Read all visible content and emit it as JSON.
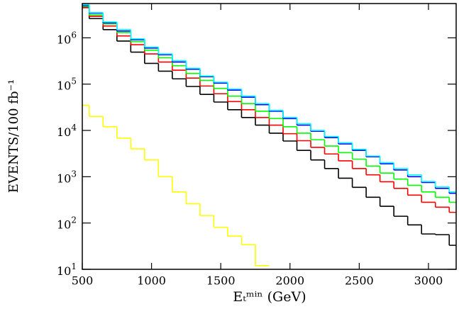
{
  "chart_data": {
    "type": "line",
    "step": true,
    "xlabel": "Eₜᵐⁱⁿ (GeV)",
    "ylabel": "EVENTS/100 fb⁻¹",
    "log_y": true,
    "grid": false,
    "xlim": [
      500,
      3200
    ],
    "xticks": [
      500,
      1000,
      1500,
      2000,
      2500,
      3000
    ],
    "ylim": [
      10,
      5500000
    ],
    "yticks": [
      {
        "value": 10,
        "label": "10^1"
      },
      {
        "value": 100,
        "label": "10^2"
      },
      {
        "value": 1000,
        "label": "10^3"
      },
      {
        "value": 10000,
        "label": "10^4"
      },
      {
        "value": 100000,
        "label": "10^5"
      },
      {
        "value": 1000000,
        "label": "10^6"
      }
    ],
    "x": [
      500,
      600,
      700,
      800,
      900,
      1000,
      1100,
      1200,
      1300,
      1400,
      1500,
      1600,
      1700,
      1800,
      1900,
      2000,
      2100,
      2200,
      2300,
      2400,
      2500,
      2600,
      2700,
      2800,
      2900,
      3000,
      3100,
      3200
    ],
    "series": [
      {
        "color": "#ffff00",
        "values": [
          35000,
          20000,
          12000,
          6800,
          4000,
          2300,
          1000,
          470,
          260,
          145,
          81,
          52,
          34,
          12,
          null,
          null,
          null,
          null,
          null,
          null,
          null,
          null,
          null,
          null,
          null,
          null,
          null,
          null
        ]
      },
      {
        "color": "#000000",
        "values": [
          4500000,
          2600000,
          1500000,
          850000,
          490000,
          280000,
          190000,
          130000,
          89000,
          60000,
          41000,
          28000,
          19000,
          13000,
          8700,
          5900,
          3700,
          2300,
          1500,
          930,
          590,
          360,
          230,
          140,
          91,
          58,
          56,
          33
        ]
      },
      {
        "color": "#ff0000",
        "values": [
          4600000,
          2900000,
          1800000,
          1100000,
          710000,
          450000,
          300000,
          200000,
          135000,
          91000,
          62000,
          42000,
          28000,
          19000,
          13000,
          8500,
          6000,
          4300,
          3100,
          2200,
          1500,
          1100,
          780,
          560,
          400,
          280,
          220,
          170
        ]
      },
      {
        "color": "#00ff00",
        "values": [
          4800000,
          3100000,
          2000000,
          1300000,
          830000,
          540000,
          370000,
          250000,
          170000,
          120000,
          81000,
          55000,
          38000,
          26000,
          18000,
          12000,
          8700,
          6300,
          4600,
          3300,
          2400,
          1700,
          1200,
          890,
          650,
          470,
          360,
          280
        ]
      },
      {
        "color": "#0000ff",
        "values": [
          5000000,
          3400000,
          2100000,
          1400000,
          910000,
          600000,
          430000,
          300000,
          210000,
          145000,
          105000,
          74000,
          52000,
          36000,
          26000,
          18000,
          13000,
          9600,
          7000,
          5100,
          3700,
          2700,
          1900,
          1400,
          1000,
          750,
          560,
          440
        ]
      },
      {
        "color": "#00ffff",
        "values": [
          5200000,
          3500000,
          2200000,
          1500000,
          950000,
          630000,
          450000,
          320000,
          220000,
          150000,
          110000,
          78000,
          55000,
          38000,
          27000,
          19000,
          14000,
          10000,
          7400,
          5400,
          3900,
          2800,
          2000,
          1500,
          1100,
          790,
          600,
          470
        ]
      }
    ]
  }
}
